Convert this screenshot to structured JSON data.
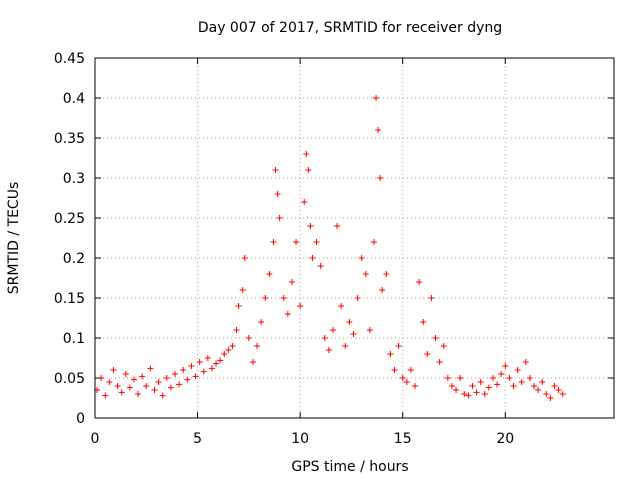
{
  "chart_data": {
    "type": "scatter",
    "title": "Day 007 of 2017, SRMTID for receiver dyng",
    "xlabel": "GPS time / hours",
    "ylabel": "SRMTID / TECUs",
    "xlim": [
      0,
      25.3
    ],
    "ylim": [
      0,
      0.45
    ],
    "x_ticks": [
      0,
      5,
      10,
      15,
      20
    ],
    "x_tick_labels": [
      "0",
      "5",
      "10",
      "15",
      "20"
    ],
    "y_ticks": [
      0,
      0.05,
      0.1,
      0.15,
      0.2,
      0.25,
      0.3,
      0.35,
      0.4,
      0.45
    ],
    "y_tick_labels": [
      "0",
      "0.05",
      "0.1",
      "0.15",
      "0.2",
      "0.25",
      "0.3",
      "0.35",
      "0.4",
      "0.45"
    ],
    "grid": true,
    "marker": "plus",
    "marker_color": "#ff0000",
    "series": [
      {
        "name": "SRMTID",
        "points": [
          [
            0.1,
            0.035
          ],
          [
            0.3,
            0.05
          ],
          [
            0.5,
            0.028
          ],
          [
            0.7,
            0.045
          ],
          [
            0.9,
            0.06
          ],
          [
            1.1,
            0.04
          ],
          [
            1.3,
            0.032
          ],
          [
            1.5,
            0.055
          ],
          [
            1.7,
            0.038
          ],
          [
            1.9,
            0.048
          ],
          [
            2.1,
            0.03
          ],
          [
            2.3,
            0.052
          ],
          [
            2.5,
            0.04
          ],
          [
            2.7,
            0.062
          ],
          [
            2.9,
            0.035
          ],
          [
            3.1,
            0.045
          ],
          [
            3.3,
            0.028
          ],
          [
            3.5,
            0.05
          ],
          [
            3.7,
            0.038
          ],
          [
            3.9,
            0.055
          ],
          [
            4.1,
            0.042
          ],
          [
            4.3,
            0.06
          ],
          [
            4.5,
            0.048
          ],
          [
            4.7,
            0.065
          ],
          [
            4.9,
            0.052
          ],
          [
            5.1,
            0.07
          ],
          [
            5.3,
            0.058
          ],
          [
            5.5,
            0.075
          ],
          [
            5.7,
            0.062
          ],
          [
            5.9,
            0.068
          ],
          [
            6.1,
            0.072
          ],
          [
            6.3,
            0.08
          ],
          [
            6.5,
            0.085
          ],
          [
            6.7,
            0.09
          ],
          [
            6.9,
            0.11
          ],
          [
            7.0,
            0.14
          ],
          [
            7.2,
            0.16
          ],
          [
            7.3,
            0.2
          ],
          [
            7.5,
            0.1
          ],
          [
            7.7,
            0.07
          ],
          [
            7.9,
            0.09
          ],
          [
            8.1,
            0.12
          ],
          [
            8.3,
            0.15
          ],
          [
            8.5,
            0.18
          ],
          [
            8.7,
            0.22
          ],
          [
            8.8,
            0.31
          ],
          [
            8.9,
            0.28
          ],
          [
            9.0,
            0.25
          ],
          [
            9.2,
            0.15
          ],
          [
            9.4,
            0.13
          ],
          [
            9.6,
            0.17
          ],
          [
            9.8,
            0.22
          ],
          [
            10.0,
            0.14
          ],
          [
            10.2,
            0.27
          ],
          [
            10.3,
            0.33
          ],
          [
            10.4,
            0.31
          ],
          [
            10.5,
            0.24
          ],
          [
            10.6,
            0.2
          ],
          [
            10.8,
            0.22
          ],
          [
            11.0,
            0.19
          ],
          [
            11.2,
            0.1
          ],
          [
            11.4,
            0.085
          ],
          [
            11.6,
            0.11
          ],
          [
            11.8,
            0.24
          ],
          [
            12.0,
            0.14
          ],
          [
            12.2,
            0.09
          ],
          [
            12.4,
            0.12
          ],
          [
            12.6,
            0.105
          ],
          [
            12.8,
            0.15
          ],
          [
            13.0,
            0.2
          ],
          [
            13.2,
            0.18
          ],
          [
            13.4,
            0.11
          ],
          [
            13.6,
            0.22
          ],
          [
            13.7,
            0.4
          ],
          [
            13.8,
            0.36
          ],
          [
            13.9,
            0.3
          ],
          [
            14.0,
            0.16
          ],
          [
            14.2,
            0.18
          ],
          [
            14.4,
            0.08
          ],
          [
            14.6,
            0.06
          ],
          [
            14.8,
            0.09
          ],
          [
            15.0,
            0.05
          ],
          [
            15.2,
            0.045
          ],
          [
            15.4,
            0.06
          ],
          [
            15.6,
            0.04
          ],
          [
            15.8,
            0.17
          ],
          [
            16.0,
            0.12
          ],
          [
            16.2,
            0.08
          ],
          [
            16.4,
            0.15
          ],
          [
            16.6,
            0.1
          ],
          [
            16.8,
            0.07
          ],
          [
            17.0,
            0.09
          ],
          [
            17.2,
            0.05
          ],
          [
            17.4,
            0.04
          ],
          [
            17.6,
            0.035
          ],
          [
            17.8,
            0.05
          ],
          [
            18.0,
            0.03
          ],
          [
            18.2,
            0.028
          ],
          [
            18.4,
            0.04
          ],
          [
            18.6,
            0.032
          ],
          [
            18.8,
            0.045
          ],
          [
            19.0,
            0.03
          ],
          [
            19.2,
            0.038
          ],
          [
            19.4,
            0.05
          ],
          [
            19.6,
            0.042
          ],
          [
            19.8,
            0.055
          ],
          [
            20.0,
            0.065
          ],
          [
            20.2,
            0.05
          ],
          [
            20.4,
            0.04
          ],
          [
            20.6,
            0.06
          ],
          [
            20.8,
            0.045
          ],
          [
            21.0,
            0.07
          ],
          [
            21.2,
            0.05
          ],
          [
            21.4,
            0.04
          ],
          [
            21.6,
            0.035
          ],
          [
            21.8,
            0.045
          ],
          [
            22.0,
            0.03
          ],
          [
            22.2,
            0.025
          ],
          [
            22.4,
            0.04
          ],
          [
            22.6,
            0.035
          ],
          [
            22.8,
            0.03
          ]
        ]
      }
    ]
  }
}
